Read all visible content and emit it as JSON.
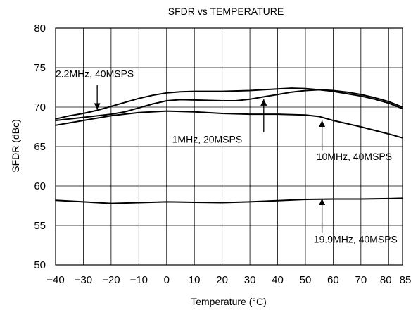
{
  "chart_data": {
    "type": "line",
    "title": "SFDR vs TEMPERATURE",
    "xlabel": "Temperature (°C)",
    "ylabel": "SFDR (dBc)",
    "xlim": [
      -40,
      85
    ],
    "ylim": [
      50,
      80
    ],
    "grid": true,
    "x_ticks": [
      -40,
      -30,
      -20,
      -10,
      0,
      10,
      20,
      30,
      40,
      50,
      60,
      70,
      80,
      85
    ],
    "x_tick_labels": [
      "−40",
      "−30",
      "−20",
      "−10",
      "0",
      "10",
      "20",
      "30",
      "40",
      "50",
      "60",
      "70",
      "80",
      "85"
    ],
    "y_ticks": [
      50,
      55,
      60,
      65,
      70,
      75,
      80
    ],
    "y_tick_labels": [
      "50",
      "55",
      "60",
      "65",
      "70",
      "75",
      "80"
    ],
    "series": [
      {
        "name": "2.2MHz, 40MSPS",
        "x": [
          -40,
          -35,
          -30,
          -25,
          -20,
          -15,
          -10,
          -5,
          0,
          5,
          10,
          20,
          30,
          40,
          45,
          50,
          55,
          60,
          65,
          70,
          75,
          80,
          85
        ],
        "values": [
          68.5,
          68.9,
          69.2,
          69.6,
          70.1,
          70.6,
          71.1,
          71.5,
          71.8,
          71.95,
          72.0,
          72.0,
          72.1,
          72.3,
          72.4,
          72.35,
          72.2,
          72.0,
          71.7,
          71.4,
          71.0,
          70.5,
          69.8
        ]
      },
      {
        "name": "1MHz, 20MSPS",
        "x": [
          -40,
          -30,
          -20,
          -15,
          -10,
          -5,
          0,
          5,
          10,
          20,
          25,
          30,
          35,
          40,
          45,
          50,
          55,
          60,
          65,
          70,
          75,
          80,
          85
        ],
        "values": [
          68.3,
          68.7,
          69.1,
          69.4,
          69.9,
          70.4,
          70.8,
          70.95,
          70.9,
          70.8,
          70.8,
          71.0,
          71.3,
          71.6,
          71.9,
          72.1,
          72.2,
          72.1,
          71.9,
          71.6,
          71.2,
          70.7,
          70.0
        ]
      },
      {
        "name": "10MHz, 40MSPS",
        "x": [
          -40,
          -30,
          -20,
          -10,
          0,
          10,
          20,
          30,
          40,
          50,
          55,
          60,
          70,
          80,
          85
        ],
        "values": [
          67.7,
          68.3,
          68.9,
          69.3,
          69.5,
          69.4,
          69.2,
          69.1,
          69.1,
          69.0,
          68.8,
          68.3,
          67.5,
          66.6,
          66.1
        ]
      },
      {
        "name": "19.9MHz, 40MSPS",
        "x": [
          -40,
          -30,
          -20,
          -10,
          0,
          10,
          20,
          30,
          40,
          50,
          60,
          70,
          80,
          85
        ],
        "values": [
          58.2,
          58.0,
          57.8,
          57.9,
          58.0,
          57.95,
          57.9,
          58.0,
          58.15,
          58.3,
          58.35,
          58.35,
          58.4,
          58.45
        ]
      }
    ],
    "annotations": [
      {
        "text": "2.2MHz, 40MSPS",
        "series": "2.2MHz, 40MSPS",
        "text_at": [
          -40,
          73.8
        ],
        "arrow_from": [
          -25,
          72.8
        ],
        "arrow_to": [
          -25,
          69.7
        ]
      },
      {
        "text": "1MHz, 20MSPS",
        "series": "1MHz, 20MSPS",
        "text_at": [
          2,
          65.5
        ],
        "arrow_from": [
          35,
          66.8
        ],
        "arrow_to": [
          35,
          71.0
        ]
      },
      {
        "text": "10MHz, 40MSPS",
        "series": "10MHz, 40MSPS",
        "text_at": [
          54,
          63.3
        ],
        "arrow_from": [
          56,
          64.5
        ],
        "arrow_to": [
          56,
          68.3
        ]
      },
      {
        "text": "19.9MHz, 40MSPS",
        "series": "19.9MHz, 40MSPS",
        "text_at": [
          53,
          52.8
        ],
        "arrow_from": [
          56,
          54.0
        ],
        "arrow_to": [
          56,
          58.4
        ]
      }
    ]
  }
}
